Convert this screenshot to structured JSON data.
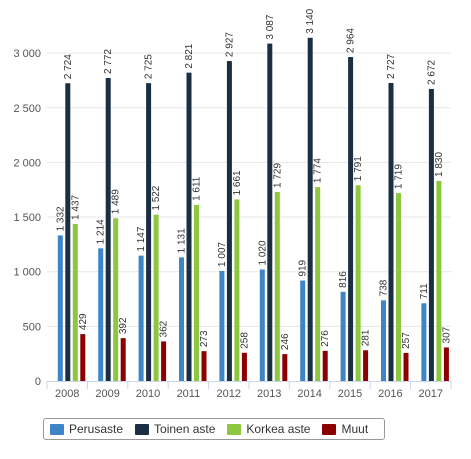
{
  "chart_data": {
    "type": "bar",
    "categories": [
      "2008",
      "2009",
      "2010",
      "2011",
      "2012",
      "2013",
      "2014",
      "2015",
      "2016",
      "2017"
    ],
    "series": [
      {
        "name": "Perusaste",
        "color": "#3d85c6",
        "values": [
          1332,
          1214,
          1147,
          1131,
          1007,
          1020,
          919,
          816,
          738,
          711
        ],
        "labels": [
          "1 332",
          "1 214",
          "1 147",
          "1 131",
          "1 007",
          "1 020",
          "919",
          "816",
          "738",
          "711"
        ]
      },
      {
        "name": "Toinen aste",
        "color": "#1a2e44",
        "values": [
          2724,
          2772,
          2725,
          2821,
          2927,
          3087,
          3140,
          2964,
          2727,
          2672
        ],
        "labels": [
          "2 724",
          "2 772",
          "2 725",
          "2 821",
          "2 927",
          "3 087",
          "3 140",
          "2 964",
          "2 727",
          "2 672"
        ]
      },
      {
        "name": "Korkea aste",
        "color": "#8dc63f",
        "values": [
          1437,
          1489,
          1522,
          1611,
          1661,
          1729,
          1774,
          1791,
          1719,
          1830
        ],
        "labels": [
          "1 437",
          "1 489",
          "1 522",
          "1 611",
          "1 661",
          "1 729",
          "1 774",
          "1 791",
          "1 719",
          "1 830"
        ]
      },
      {
        "name": "Muut",
        "color": "#8b0000",
        "values": [
          429,
          392,
          362,
          273,
          258,
          246,
          276,
          281,
          257,
          307
        ],
        "labels": [
          "429",
          "392",
          "362",
          "273",
          "258",
          "246",
          "276",
          "281",
          "257",
          "307"
        ]
      }
    ],
    "yticks": [
      0,
      500,
      1000,
      1500,
      2000,
      2500,
      3000
    ],
    "ytick_labels": [
      "0",
      "500",
      "1 000",
      "1 500",
      "2 000",
      "2 500",
      "3 000"
    ],
    "ylim": [
      0,
      3250
    ],
    "grid": true,
    "legend_position": "bottom-left"
  }
}
